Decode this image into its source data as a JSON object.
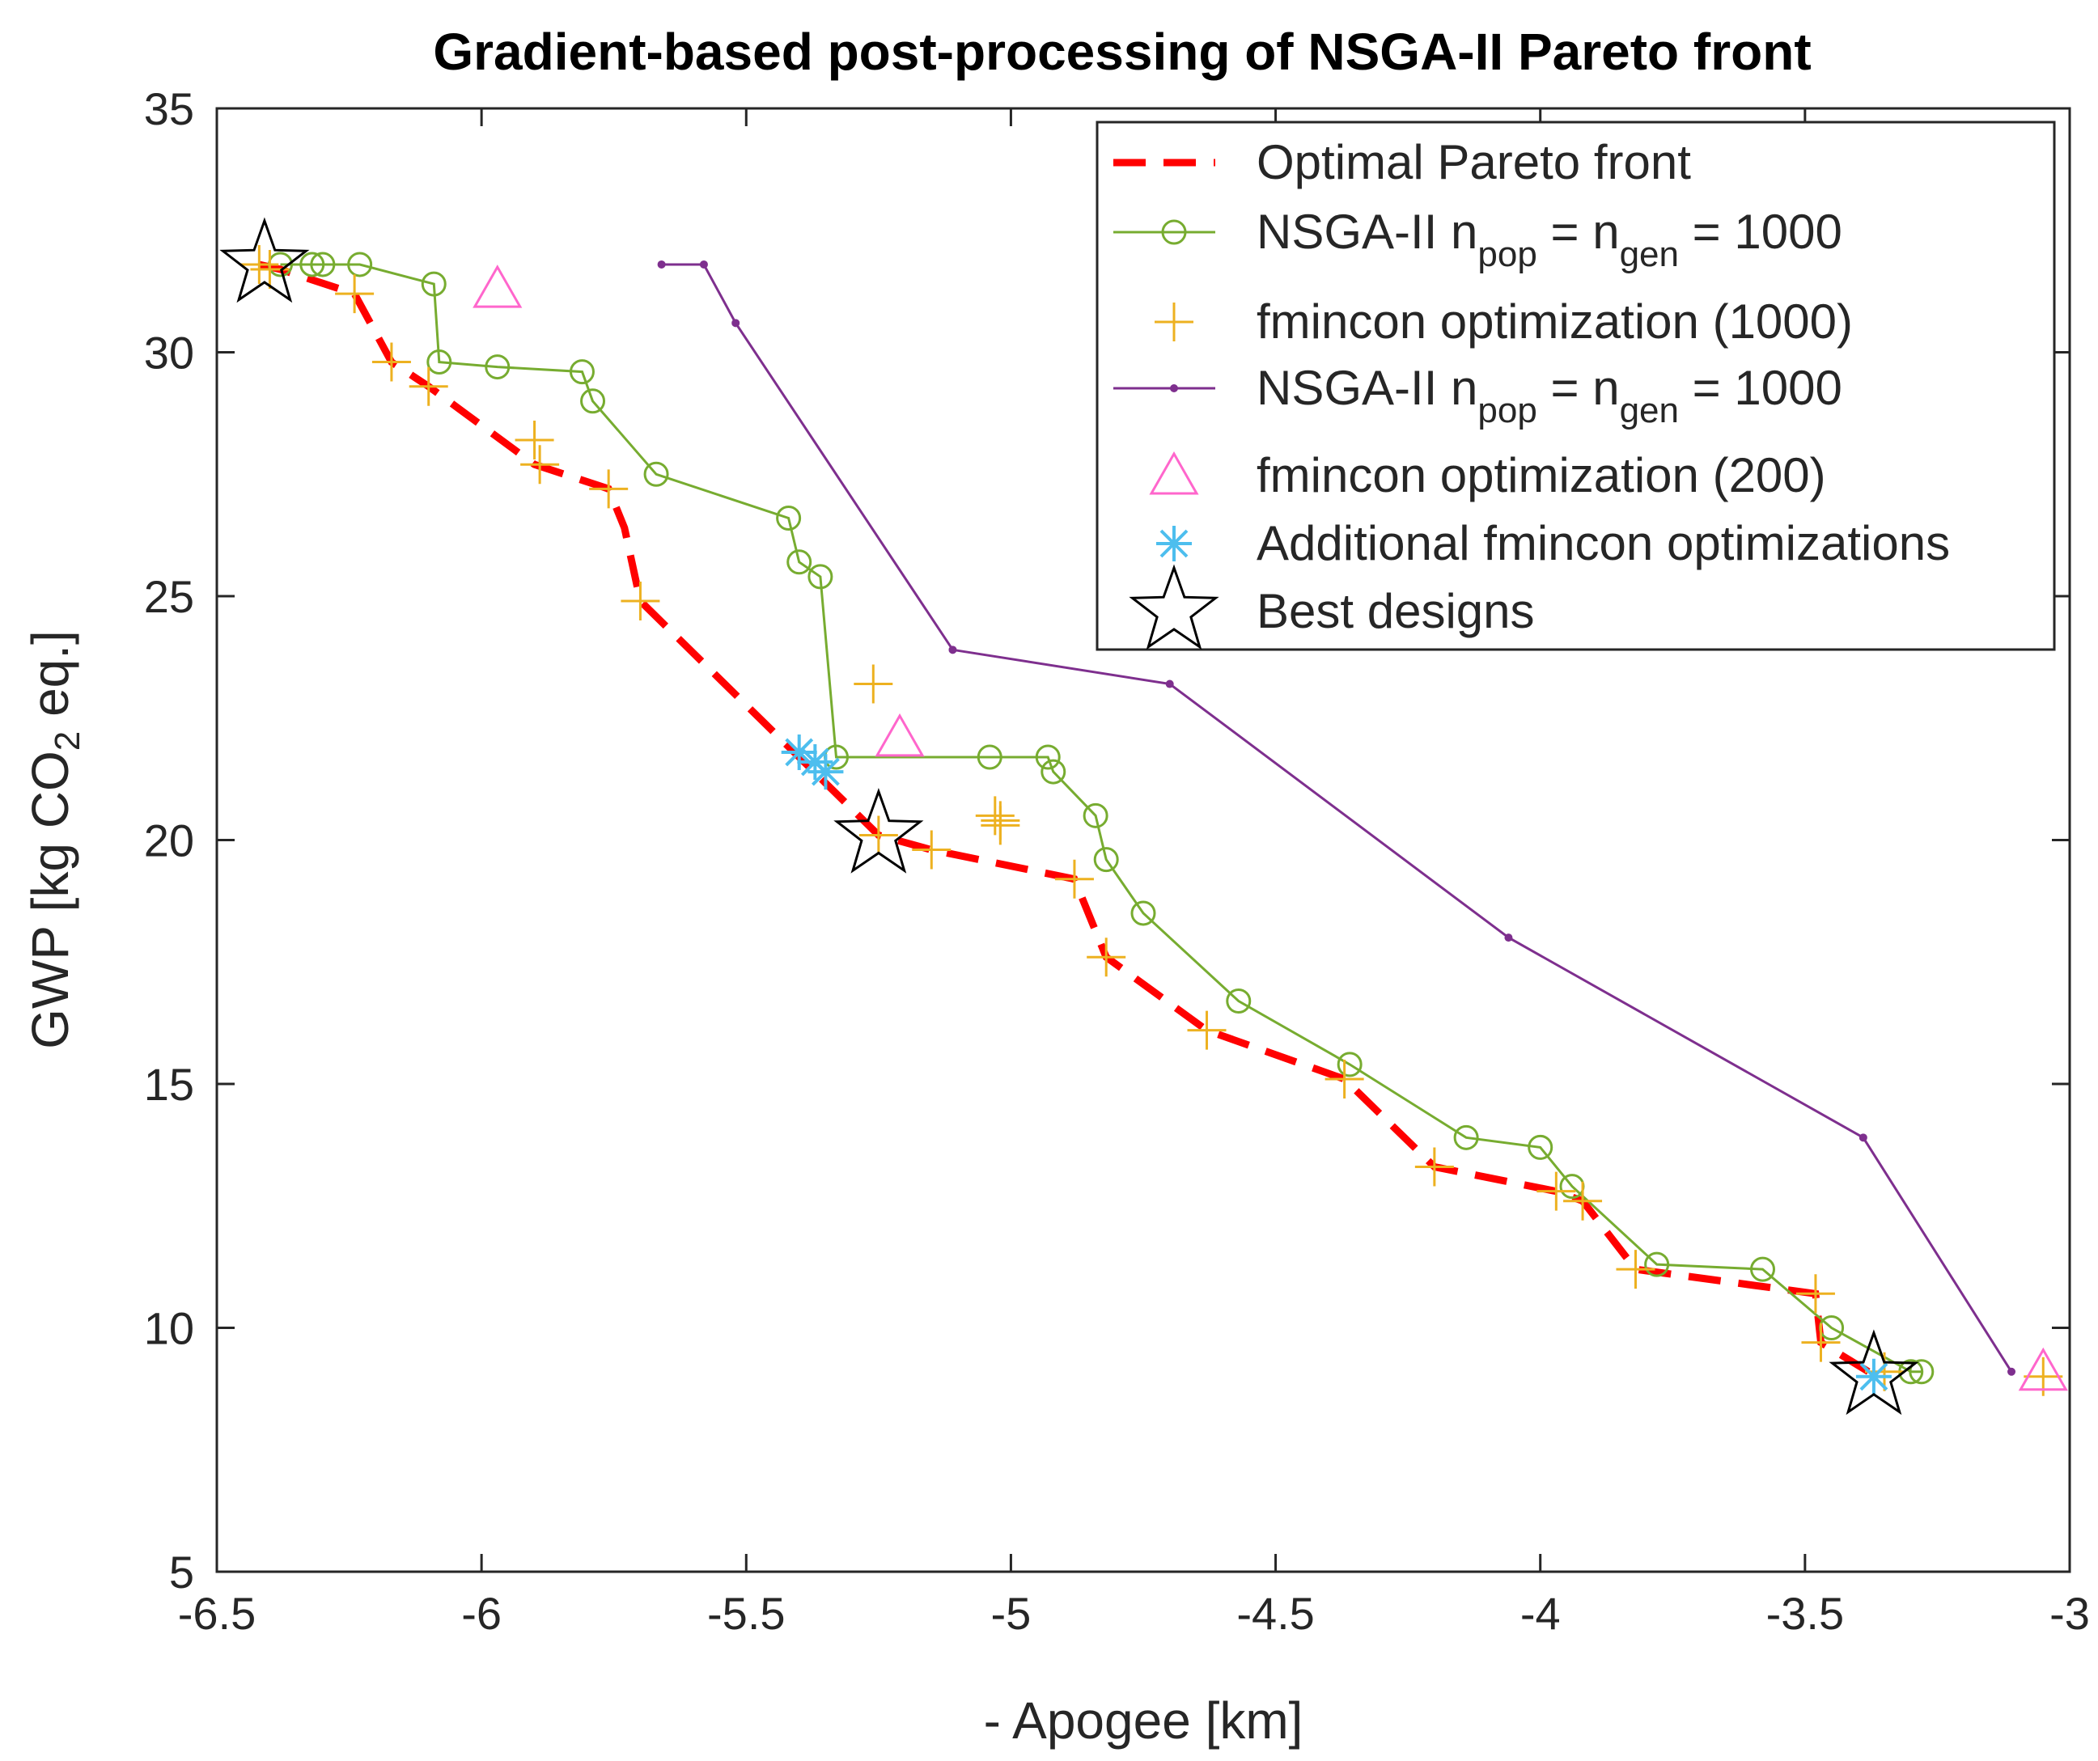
{
  "chart_data": {
    "type": "scatter",
    "title": "Gradient-based post-processing of NSGA-II Pareto front",
    "xlabel": "- Apogee [km]",
    "ylabel": {
      "main": "GWP [kg CO",
      "sub": "2",
      "tail": " eq.]"
    },
    "xlim": [
      -6.5,
      -3
    ],
    "ylim": [
      5,
      35
    ],
    "xticks": [
      -6.5,
      -6,
      -5.5,
      -5,
      -4.5,
      -4,
      -3.5,
      -3
    ],
    "xtick_labels": [
      "-6.5",
      "-6",
      "-5.5",
      "-5",
      "-4.5",
      "-4",
      "-3.5",
      "-3"
    ],
    "yticks": [
      5,
      10,
      15,
      20,
      25,
      30,
      35
    ],
    "ytick_labels": [
      "5",
      "10",
      "15",
      "20",
      "25",
      "30",
      "35"
    ],
    "grid": false,
    "legend_position": "top-right",
    "series": [
      {
        "name": "Optimal Pareto front",
        "label": {
          "text": "Optimal Pareto front"
        },
        "style": "dashed-line",
        "color": "#ff0000",
        "x": [
          -6.42,
          -6.38,
          -6.24,
          -6.17,
          -6.1,
          -5.9,
          -5.76,
          -5.73,
          -5.7,
          -5.25,
          -5.15,
          -4.88,
          -4.82,
          -4.63,
          -4.37,
          -4.2,
          -3.97,
          -3.92,
          -3.82,
          -3.48,
          -3.47,
          -3.38
        ],
        "y": [
          31.8,
          31.7,
          31.2,
          29.8,
          29.3,
          27.7,
          27.2,
          26.4,
          24.9,
          20.1,
          19.8,
          19.2,
          17.6,
          16.1,
          15.1,
          13.3,
          12.8,
          12.6,
          11.2,
          10.7,
          9.7,
          9.1
        ]
      },
      {
        "name": "NSGA-II npop = ngen = 1000 (green)",
        "label": {
          "pre": "NSGA-II n",
          "sub1": "pop",
          "mid": " = n",
          "sub2": "gen",
          "post": " = 1000"
        },
        "style": "line-circle",
        "color": "#77ac30",
        "x": [
          -6.38,
          -6.32,
          -6.3,
          -6.23,
          -6.09,
          -6.08,
          -5.97,
          -5.81,
          -5.79,
          -5.67,
          -5.42,
          -5.4,
          -5.36,
          -5.33,
          -5.04,
          -4.93,
          -4.92,
          -4.84,
          -4.82,
          -4.75,
          -4.57,
          -4.36,
          -4.14,
          -4.0,
          -3.94,
          -3.78,
          -3.58,
          -3.45,
          -3.3,
          -3.28
        ],
        "y": [
          31.8,
          31.8,
          31.8,
          31.8,
          31.4,
          29.8,
          29.7,
          29.6,
          29.0,
          27.5,
          26.6,
          25.7,
          25.4,
          21.7,
          21.7,
          21.7,
          21.4,
          20.5,
          19.6,
          18.5,
          16.7,
          15.4,
          13.9,
          13.7,
          12.9,
          11.3,
          11.2,
          10.0,
          9.1,
          9.1
        ]
      },
      {
        "name": "fmincon optimization (1000)",
        "label": {
          "text": "fmincon optimization (1000)"
        },
        "style": "plus",
        "color": "#edb120",
        "x": [
          -6.42,
          -6.4,
          -6.24,
          -6.17,
          -6.1,
          -5.9,
          -5.89,
          -5.76,
          -5.7,
          -5.26,
          -5.25,
          -5.15,
          -5.03,
          -5.02,
          -5.02,
          -4.88,
          -4.82,
          -4.63,
          -4.37,
          -4.2,
          -3.97,
          -3.92,
          -3.82,
          -3.48,
          -3.47,
          -3.35,
          -3.05
        ],
        "y": [
          31.8,
          31.7,
          31.2,
          29.8,
          29.3,
          28.2,
          27.7,
          27.2,
          24.9,
          23.2,
          20.1,
          19.8,
          20.5,
          20.3,
          20.4,
          19.2,
          17.6,
          16.1,
          15.1,
          13.3,
          12.8,
          12.6,
          11.2,
          10.7,
          9.7,
          9.1,
          9.0
        ]
      },
      {
        "name": "NSGA-II npop = ngen = 1000 (purple)",
        "label": {
          "pre": "NSGA-II n",
          "sub1": "pop",
          "mid": " = n",
          "sub2": "gen",
          "post": " = 1000"
        },
        "style": "line-dot",
        "color": "#7e2f8e",
        "x": [
          -5.66,
          -5.58,
          -5.52,
          -5.11,
          -4.7,
          -4.06,
          -3.39,
          -3.11
        ],
        "y": [
          31.8,
          31.8,
          30.6,
          23.9,
          23.2,
          18.0,
          13.9,
          9.1
        ]
      },
      {
        "name": "fmincon optimization (200)",
        "label": {
          "text": "fmincon optimization (200)"
        },
        "style": "triangle",
        "color": "#ff66cc",
        "x": [
          -5.97,
          -5.21,
          -3.05
        ],
        "y": [
          31.3,
          22.1,
          9.1
        ]
      },
      {
        "name": "Additional fmincon optimizations",
        "label": {
          "text": "Additional fmincon optimizations"
        },
        "style": "asterisk",
        "color": "#4dbeee",
        "x": [
          -5.4,
          -5.37,
          -5.35,
          -3.37
        ],
        "y": [
          21.8,
          21.6,
          21.4,
          9.0
        ]
      },
      {
        "name": "Best designs",
        "label": {
          "text": "Best designs"
        },
        "style": "star",
        "color": "#000000",
        "x": [
          -6.41,
          -5.25,
          -3.37
        ],
        "y": [
          31.8,
          20.1,
          9.0
        ]
      }
    ]
  }
}
